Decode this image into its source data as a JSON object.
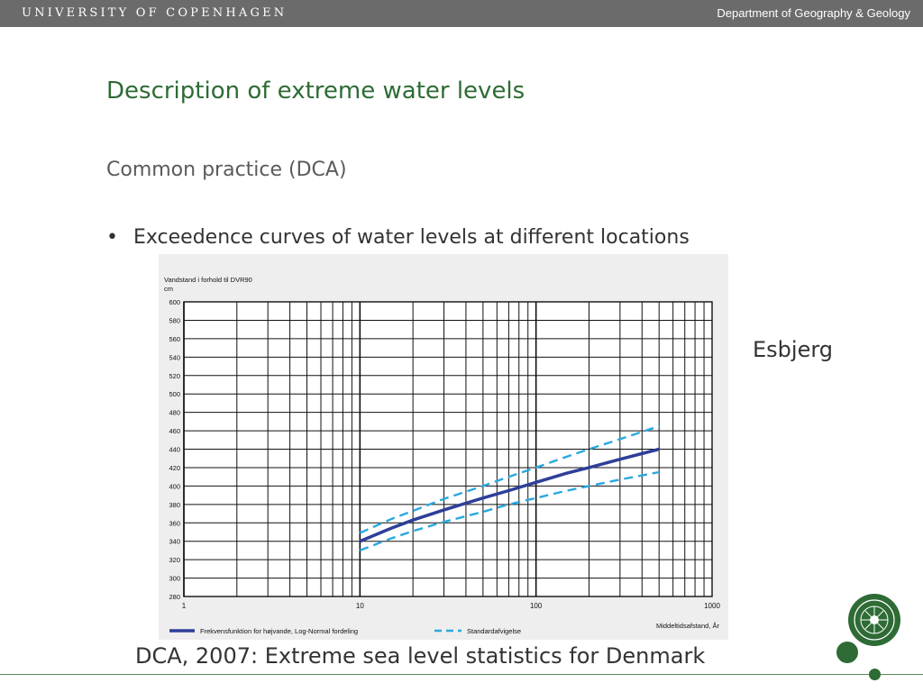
{
  "header": {
    "university": "UNIVERSITY OF COPENHAGEN",
    "department": "Department of Geography & Geology"
  },
  "slide": {
    "title": "Description of extreme water levels",
    "subtitle": "Common practice (DCA)",
    "bullet_marker": "•",
    "bullet": "Exceedence curves of water levels at different locations",
    "location": "Esbjerg",
    "caption": "DCA, 2007: Extreme sea level statistics for Denmark"
  },
  "colors": {
    "brand_green": "#2e6b35",
    "header_gray": "#6b6b6b",
    "main_curve": "#2e3f99",
    "std_curve": "#29a8e0"
  },
  "chart_data": {
    "type": "line",
    "ylabel": "Vandstand i forhold til DVR90",
    "yunit": "cm",
    "xlabel": "Middeltidsafstand, År",
    "xscale": "log",
    "xlim": [
      1,
      1000
    ],
    "ylim": [
      280,
      600
    ],
    "xticks": [
      "1",
      "10",
      "100",
      "1000"
    ],
    "yticks": [
      280,
      300,
      320,
      340,
      360,
      380,
      400,
      420,
      440,
      460,
      480,
      500,
      520,
      540,
      560,
      580,
      600
    ],
    "grid": true,
    "legend_position": "bottom",
    "series": [
      {
        "name": "Frekvensfunktion for højvande, Log-Normal fordeling",
        "style": "solid",
        "color": "#2e3f99",
        "x": [
          10,
          15,
          20,
          30,
          50,
          70,
          100,
          150,
          200,
          300,
          500
        ],
        "y": [
          340,
          354,
          363,
          374,
          387,
          395,
          404,
          414,
          420,
          429,
          440
        ]
      },
      {
        "name": "Standardafvigelse",
        "style": "dashed",
        "color": "#29a8e0",
        "x": [
          10,
          15,
          20,
          30,
          50,
          70,
          100,
          150,
          200,
          300,
          500
        ],
        "y": [
          349,
          364,
          373,
          386,
          400,
          410,
          420,
          432,
          440,
          451,
          465
        ]
      },
      {
        "name": "",
        "style": "dashed",
        "color": "#29a8e0",
        "x": [
          10,
          15,
          20,
          30,
          50,
          70,
          100,
          150,
          200,
          300,
          500
        ],
        "y": [
          330,
          343,
          351,
          361,
          372,
          380,
          387,
          395,
          400,
          407,
          415
        ]
      }
    ]
  }
}
